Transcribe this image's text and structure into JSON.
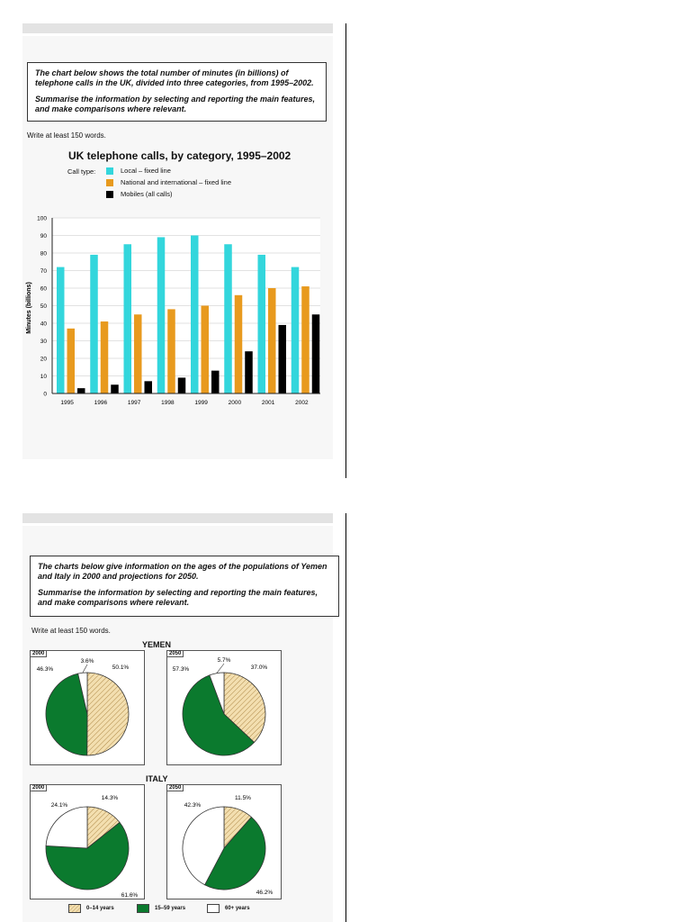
{
  "top": {
    "prompt_p1": "The chart below shows the total number of minutes (in billions) of telephone calls in the UK, divided into three categories, from 1995–2002.",
    "prompt_p2": "Summarise the information by selecting and reporting the main features, and make comparisons where relevant.",
    "write": "Write at least 150 words."
  },
  "bottom": {
    "prompt_p1": "The charts below give information on the ages of the populations of Yemen and Italy in 2000 and projections for 2050.",
    "prompt_p2": "Summarise the information by selecting and reporting the main features, and make comparisons where relevant.",
    "write": "Write at least 150 words."
  },
  "colors": {
    "local": "#33d6dc",
    "national": "#e89a1e",
    "mobile": "#000000",
    "young": "#f3dfb0",
    "young_hatch": "#b08a48",
    "working": "#0b7a2e",
    "old": "#ffffff"
  },
  "chart_data": [
    {
      "type": "bar",
      "title": "UK telephone calls, by category, 1995–2002",
      "legend_title": "Call type:",
      "categories": [
        "1995",
        "1996",
        "1997",
        "1998",
        "1999",
        "2000",
        "2001",
        "2002"
      ],
      "series": [
        {
          "name": "Local – fixed line",
          "values": [
            72,
            79,
            85,
            89,
            90,
            85,
            79,
            72
          ]
        },
        {
          "name": "National and international – fixed line",
          "values": [
            37,
            41,
            45,
            48,
            50,
            56,
            60,
            61
          ]
        },
        {
          "name": "Mobiles (all calls)",
          "values": [
            3,
            5,
            7,
            9,
            13,
            24,
            39,
            45
          ]
        }
      ],
      "ylabel": "Minutes (billions)",
      "xlabel": "",
      "ylim": [
        0,
        100
      ],
      "yticks": [
        "0",
        "10",
        "20",
        "30",
        "40",
        "50",
        "60",
        "70",
        "80",
        "90",
        "100"
      ],
      "grid": true
    },
    {
      "type": "pie",
      "region": "YEMEN",
      "year": "2000",
      "slices": [
        {
          "label": "0–14 years",
          "value": 50.1,
          "text": "50.1%"
        },
        {
          "label": "15–59 years",
          "value": 46.3,
          "text": "46.3%"
        },
        {
          "label": "60+ years",
          "value": 3.6,
          "text": "3.6%"
        }
      ]
    },
    {
      "type": "pie",
      "region": "YEMEN",
      "year": "2050",
      "slices": [
        {
          "label": "0–14 years",
          "value": 37.0,
          "text": "37.0%"
        },
        {
          "label": "15–59 years",
          "value": 57.3,
          "text": "57.3%"
        },
        {
          "label": "60+ years",
          "value": 5.7,
          "text": "5.7%"
        }
      ]
    },
    {
      "type": "pie",
      "region": "ITALY",
      "year": "2000",
      "slices": [
        {
          "label": "0–14 years",
          "value": 14.3,
          "text": "14.3%"
        },
        {
          "label": "15–59 years",
          "value": 61.6,
          "text": "61.6%"
        },
        {
          "label": "60+ years",
          "value": 24.1,
          "text": "24.1%"
        }
      ]
    },
    {
      "type": "pie",
      "region": "ITALY",
      "year": "2050",
      "slices": [
        {
          "label": "0–14 years",
          "value": 11.5,
          "text": "11.5%"
        },
        {
          "label": "15–59 years",
          "value": 46.2,
          "text": "46.2%"
        },
        {
          "label": "60+ years",
          "value": 42.3,
          "text": "42.3%"
        }
      ]
    }
  ],
  "pie_legend": [
    "0–14 years",
    "15–59 years",
    "60+ years"
  ]
}
